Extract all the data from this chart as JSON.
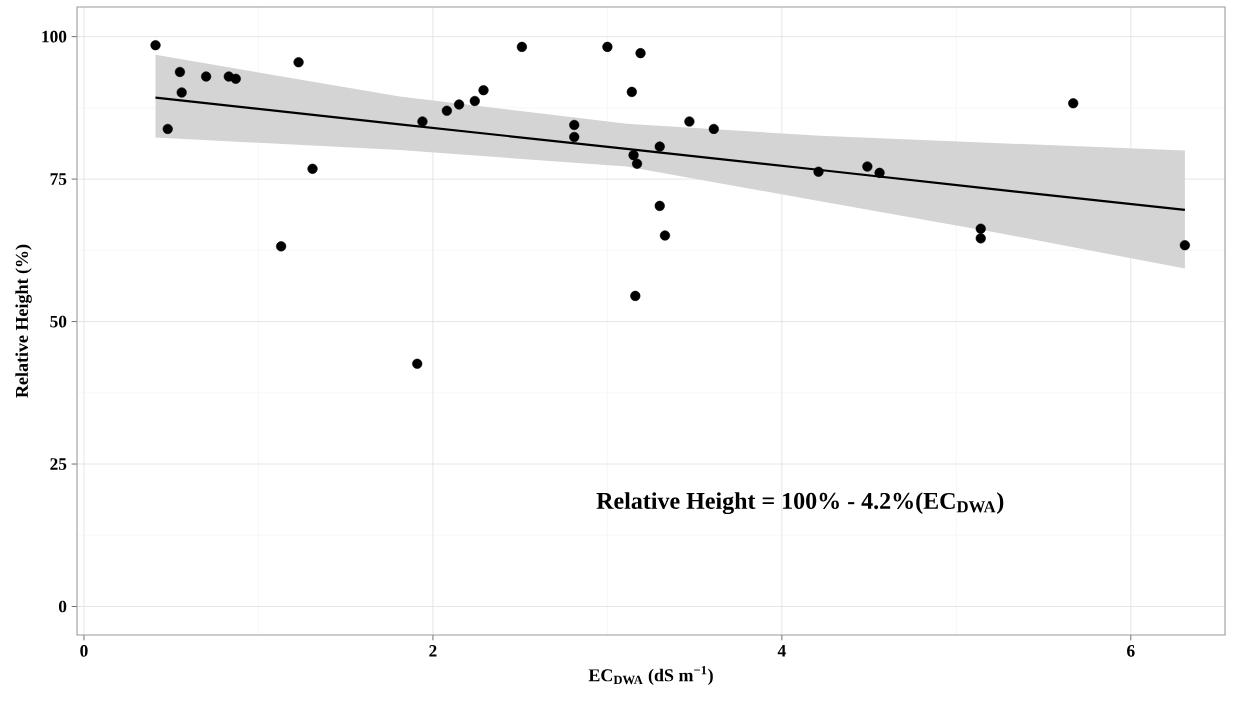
{
  "chart_data": {
    "type": "scatter",
    "xlabel": "EC$_{DWA}$ (dS m$^{−1}$)",
    "ylabel": "Relative Height (%)",
    "annotations": [
      "Relative Height = 100% - 4.2%(EC$_{DWA}$)"
    ],
    "xlim": [
      -0.04,
      6.54
    ],
    "ylim": [
      -5,
      105.2
    ],
    "xticks": [
      0,
      2,
      4,
      6
    ],
    "yticks": [
      0,
      25,
      50,
      75,
      100
    ],
    "grid": true,
    "series": [
      {
        "type": "line",
        "color": "#000000",
        "line_style": "solid",
        "x": [
          0.41,
          1.81,
          3.11,
          4.22,
          5.25,
          6.31
        ],
        "values": [
          89.3,
          84.6,
          80.3,
          76.6,
          73.1,
          69.6
        ],
        "lower": [
          82.3,
          80.1,
          77.2,
          71.1,
          65.5,
          59.3
        ],
        "upper": [
          96.8,
          89.5,
          84.7,
          82.6,
          81.3,
          80.0
        ]
      },
      {
        "color": "#000000",
        "marker": "circle",
        "x": [
          0.41,
          0.55,
          0.56,
          0.7,
          0.48,
          0.83,
          0.87,
          1.23,
          1.31,
          1.13,
          1.94,
          2.08,
          2.15,
          2.24,
          2.29,
          2.51,
          2.81,
          2.81,
          3.0,
          3.19,
          3.14,
          3.15,
          3.17,
          3.3,
          3.3,
          3.33,
          3.16,
          3.47,
          3.61,
          4.21,
          4.49,
          4.56,
          5.14,
          5.14,
          5.67,
          6.31,
          1.91
        ],
        "values": [
          98.5,
          93.8,
          90.2,
          93.0,
          83.8,
          93.0,
          92.6,
          95.5,
          76.8,
          63.2,
          85.1,
          87.0,
          88.1,
          88.7,
          90.6,
          98.2,
          84.5,
          82.4,
          98.2,
          97.1,
          90.3,
          79.2,
          77.7,
          80.7,
          70.3,
          65.1,
          54.5,
          85.1,
          83.8,
          76.3,
          77.2,
          76.1,
          66.3,
          64.6,
          88.3,
          63.4,
          42.6
        ]
      }
    ]
  }
}
